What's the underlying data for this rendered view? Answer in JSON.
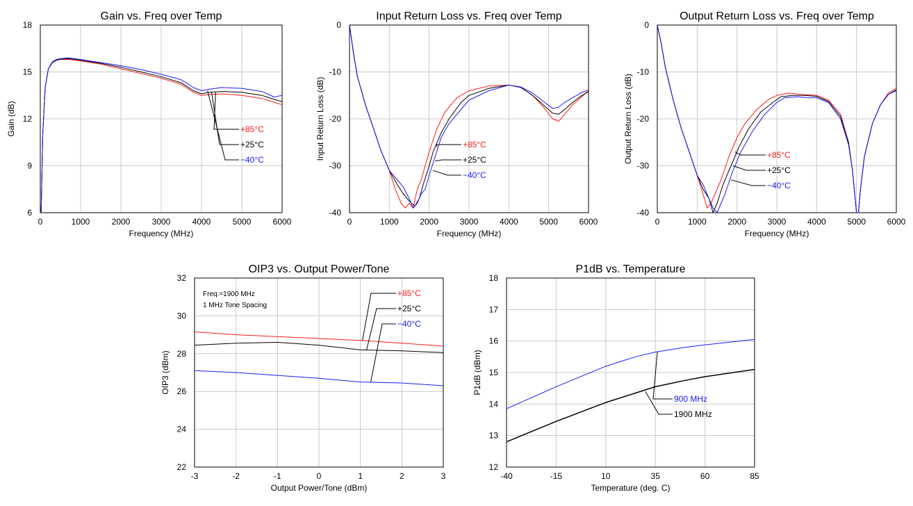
{
  "colors": {
    "red": "#ff1a1a",
    "black": "#000000",
    "blue": "#1a1aff",
    "grid": "#c8c8c8"
  },
  "chart_data": [
    {
      "id": "gain",
      "type": "line",
      "title": "Gain vs. Freq over Temp",
      "xlabel": "Frequency (MHz)",
      "ylabel": "Gain (dB)",
      "xlim": [
        0,
        6000
      ],
      "ylim": [
        6,
        18
      ],
      "xticks": [
        0,
        1000,
        2000,
        3000,
        4000,
        5000,
        6000
      ],
      "yticks": [
        6,
        9,
        12,
        15,
        18
      ],
      "grid": true,
      "legend": {
        "entries": [
          {
            "label": "+85°C",
            "color": "red",
            "anchor": [
              4350,
              13.7
            ]
          },
          {
            "label": "+25°C",
            "color": "black",
            "anchor": [
              4250,
              13.7
            ]
          },
          {
            "label": "−40°C",
            "color": "blue",
            "anchor": [
              4150,
              13.8
            ]
          }
        ]
      },
      "series": [
        {
          "name": "+85°C",
          "color": "red",
          "x": [
            20,
            60,
            120,
            200,
            300,
            400,
            500,
            700,
            1000,
            1500,
            2000,
            2500,
            3000,
            3500,
            3800,
            4000,
            4200,
            4500,
            5000,
            5500,
            6000
          ],
          "y": [
            6,
            11,
            14,
            15.2,
            15.6,
            15.75,
            15.8,
            15.8,
            15.7,
            15.5,
            15.2,
            14.9,
            14.6,
            14.2,
            13.7,
            13.5,
            13.55,
            13.6,
            13.5,
            13.3,
            12.9
          ]
        },
        {
          "name": "+25°C",
          "color": "black",
          "x": [
            20,
            60,
            120,
            200,
            300,
            400,
            500,
            700,
            1000,
            1500,
            2000,
            2500,
            3000,
            3500,
            3800,
            4000,
            4200,
            4500,
            5000,
            5500,
            6000
          ],
          "y": [
            6,
            11,
            14,
            15.2,
            15.6,
            15.75,
            15.82,
            15.85,
            15.75,
            15.55,
            15.3,
            15.0,
            14.7,
            14.3,
            13.8,
            13.6,
            13.7,
            13.75,
            13.7,
            13.5,
            13.1
          ]
        },
        {
          "name": "−40°C",
          "color": "blue",
          "x": [
            20,
            60,
            120,
            200,
            300,
            400,
            500,
            700,
            1000,
            1500,
            2000,
            2500,
            3000,
            3500,
            3800,
            4000,
            4200,
            4500,
            5000,
            5500,
            5800,
            6000
          ],
          "y": [
            6,
            11,
            14,
            15.2,
            15.65,
            15.8,
            15.85,
            15.9,
            15.8,
            15.6,
            15.4,
            15.15,
            14.85,
            14.5,
            14.0,
            13.8,
            13.9,
            14.0,
            13.95,
            13.75,
            13.4,
            13.5
          ]
        }
      ]
    },
    {
      "id": "irl",
      "type": "line",
      "title": "Input Return Loss vs. Freq over Temp",
      "xlabel": "Frequency (MHz)",
      "ylabel": "Input Return Loss (dB)",
      "xlim": [
        0,
        6000
      ],
      "ylim": [
        -40,
        0
      ],
      "xticks": [
        0,
        1000,
        2000,
        3000,
        4000,
        5000,
        6000
      ],
      "yticks": [
        -40,
        -30,
        -20,
        -10,
        0
      ],
      "grid": true,
      "legend": {
        "entries": [
          {
            "label": "+85°C",
            "color": "red",
            "anchor": [
              2200,
              -26
            ]
          },
          {
            "label": "+25°C",
            "color": "black",
            "anchor": [
              2150,
              -29
            ]
          },
          {
            "label": "−40°C",
            "color": "blue",
            "anchor": [
              2100,
              -31
            ]
          }
        ]
      },
      "series": [
        {
          "name": "+85°C",
          "color": "red",
          "x": [
            0,
            100,
            200,
            400,
            600,
            800,
            1000,
            1150,
            1300,
            1400,
            1500,
            1600,
            1700,
            1800,
            1900,
            2000,
            2200,
            2400,
            2700,
            3000,
            3500,
            4000,
            4300,
            4600,
            4900,
            5100,
            5250,
            5400,
            5600,
            5800,
            6000
          ],
          "y": [
            0,
            -6,
            -11,
            -17,
            -22,
            -27,
            -31,
            -35,
            -38,
            -39,
            -38,
            -39,
            -35,
            -33,
            -30,
            -27,
            -22,
            -18.5,
            -15.5,
            -14,
            -13,
            -12.8,
            -13.3,
            -15,
            -17.8,
            -20,
            -20.5,
            -19,
            -17,
            -15.5,
            -14
          ]
        },
        {
          "name": "+25°C",
          "color": "black",
          "x": [
            0,
            100,
            200,
            400,
            600,
            800,
            1000,
            1200,
            1350,
            1450,
            1550,
            1650,
            1750,
            1850,
            2000,
            2100,
            2300,
            2500,
            2800,
            3000,
            3500,
            4000,
            4300,
            4600,
            4900,
            5100,
            5250,
            5400,
            5600,
            5800,
            6000
          ],
          "y": [
            0,
            -6,
            -11,
            -17,
            -22,
            -27,
            -31,
            -34,
            -36,
            -37,
            -38,
            -38.5,
            -37,
            -34,
            -30,
            -27,
            -23,
            -20,
            -16.5,
            -15,
            -13.5,
            -12.8,
            -13.3,
            -15,
            -17.3,
            -18.8,
            -19,
            -18,
            -16.5,
            -15.2,
            -14.2
          ]
        },
        {
          "name": "−40°C",
          "color": "blue",
          "x": [
            0,
            100,
            200,
            400,
            600,
            800,
            1000,
            1200,
            1350,
            1500,
            1600,
            1700,
            1800,
            1900,
            2000,
            2150,
            2300,
            2500,
            2800,
            3000,
            3500,
            4000,
            4300,
            4600,
            4900,
            5100,
            5250,
            5400,
            5600,
            5800,
            6000
          ],
          "y": [
            0,
            -6,
            -11,
            -17,
            -22,
            -27,
            -31,
            -33,
            -34.5,
            -37,
            -39,
            -38,
            -36,
            -35,
            -32,
            -28,
            -24,
            -21,
            -18,
            -16,
            -14,
            -12.8,
            -13.2,
            -14.5,
            -16.5,
            -17.8,
            -17.5,
            -16.5,
            -15.5,
            -14.5,
            -13.8
          ]
        }
      ]
    },
    {
      "id": "orl",
      "type": "line",
      "title": "Output Return Loss vs. Freq over Temp",
      "xlabel": "Frequency (MHz)",
      "ylabel": "Output Return Loss (dB)",
      "xlim": [
        0,
        6000
      ],
      "ylim": [
        -40,
        0
      ],
      "xticks": [
        0,
        1000,
        2000,
        3000,
        4000,
        5000,
        6000
      ],
      "yticks": [
        -40,
        -30,
        -20,
        -10,
        0
      ],
      "grid": true,
      "legend": {
        "entries": [
          {
            "label": "+85°C",
            "color": "red",
            "anchor": [
              1950,
              -27
            ]
          },
          {
            "label": "+25°C",
            "color": "black",
            "anchor": [
              1900,
              -30
            ]
          },
          {
            "label": "−40°C",
            "color": "blue",
            "anchor": [
              1850,
              -33
            ]
          }
        ]
      },
      "series": [
        {
          "name": "+85°C",
          "color": "red",
          "x": [
            0,
            100,
            200,
            400,
            600,
            800,
            1000,
            1150,
            1250,
            1350,
            1450,
            1600,
            1800,
            2000,
            2200,
            2500,
            2800,
            3000,
            3300,
            3600,
            4000,
            4300,
            4600,
            4800,
            4900,
            5000,
            5050,
            5100,
            5200,
            5400,
            5600,
            5800,
            6000
          ],
          "y": [
            0,
            -4,
            -9,
            -16,
            -22,
            -27,
            -32,
            -36,
            -39,
            -38,
            -36,
            -33,
            -28,
            -24,
            -21,
            -18,
            -15.8,
            -15,
            -14.5,
            -14.8,
            -15,
            -16,
            -19,
            -25,
            -31,
            -40,
            -40,
            -35,
            -28,
            -21,
            -17,
            -14.5,
            -13.5
          ]
        },
        {
          "name": "+25°C",
          "color": "black",
          "x": [
            0,
            100,
            200,
            400,
            600,
            800,
            1000,
            1150,
            1300,
            1400,
            1500,
            1650,
            1850,
            2050,
            2300,
            2600,
            2900,
            3100,
            3400,
            3700,
            4000,
            4300,
            4600,
            4800,
            4900,
            5000,
            5050,
            5100,
            5200,
            5400,
            5600,
            5800,
            6000
          ],
          "y": [
            0,
            -4,
            -9,
            -16,
            -22,
            -27,
            -32,
            -35,
            -37,
            -40,
            -38,
            -34,
            -30,
            -26,
            -22,
            -18.5,
            -16.5,
            -15.3,
            -15,
            -15,
            -15.2,
            -16.3,
            -19.5,
            -25,
            -31,
            -40,
            -40,
            -35,
            -28,
            -21,
            -17,
            -14.8,
            -13.8
          ]
        },
        {
          "name": "−40°C",
          "color": "blue",
          "x": [
            0,
            100,
            200,
            400,
            600,
            800,
            1000,
            1150,
            1300,
            1400,
            1500,
            1700,
            1900,
            2100,
            2400,
            2700,
            3000,
            3200,
            3500,
            3800,
            4000,
            4300,
            4600,
            4800,
            4900,
            5000,
            5050,
            5100,
            5200,
            5400,
            5600,
            5800,
            6000
          ],
          "y": [
            0,
            -4,
            -9,
            -16,
            -22,
            -27,
            -32,
            -34,
            -37,
            -39,
            -40,
            -36,
            -31,
            -27,
            -22.5,
            -19,
            -16.5,
            -15.5,
            -15.3,
            -15.5,
            -15.5,
            -16.5,
            -20,
            -25.5,
            -31,
            -40,
            -40,
            -35,
            -28,
            -21,
            -17,
            -14.8,
            -14
          ]
        }
      ]
    },
    {
      "id": "oip3",
      "type": "line",
      "title": "OIP3 vs. Output Power/Tone",
      "xlabel": "Output Power/Tone (dBm)",
      "ylabel": "OIP3 (dBm)",
      "xlim": [
        -3,
        3
      ],
      "ylim": [
        22,
        32
      ],
      "xticks": [
        -3,
        -2,
        -1,
        0,
        1,
        2,
        3
      ],
      "yticks": [
        22,
        24,
        26,
        28,
        30,
        32
      ],
      "grid": true,
      "annotation": [
        "Freq.=1900 MHz",
        "1 MHz Tone Spacing"
      ],
      "legend": {
        "entries": [
          {
            "label": "+85°C",
            "color": "red",
            "anchor": [
              1.05,
              28.7
            ]
          },
          {
            "label": "+25°C",
            "color": "black",
            "anchor": [
              1.15,
              28.2
            ]
          },
          {
            "label": "−40°C",
            "color": "blue",
            "anchor": [
              1.25,
              26.5
            ]
          }
        ]
      },
      "series": [
        {
          "name": "+85°C",
          "color": "red",
          "x": [
            -3,
            -2,
            -1,
            0,
            1,
            2,
            3
          ],
          "y": [
            29.15,
            29.0,
            28.9,
            28.8,
            28.7,
            28.55,
            28.4
          ]
        },
        {
          "name": "+25°C",
          "color": "black",
          "x": [
            -3,
            -2,
            -1,
            0,
            1,
            2,
            3
          ],
          "y": [
            28.45,
            28.55,
            28.6,
            28.45,
            28.2,
            28.15,
            28.05
          ]
        },
        {
          "name": "−40°C",
          "color": "blue",
          "x": [
            -3,
            -2,
            -1,
            0,
            1,
            2,
            3
          ],
          "y": [
            27.1,
            27.0,
            26.85,
            26.7,
            26.5,
            26.45,
            26.3
          ]
        }
      ]
    },
    {
      "id": "p1db",
      "type": "line",
      "title": "P1dB vs. Temperature",
      "xlabel": "Temperature (deg. C)",
      "ylabel": "P1dB (dBm)",
      "xlim": [
        -40,
        85
      ],
      "ylim": [
        12,
        18
      ],
      "xticks": [
        -40,
        -15,
        10,
        35,
        60,
        85
      ],
      "yticks": [
        12,
        13,
        14,
        15,
        16,
        17,
        18
      ],
      "grid": true,
      "legend": {
        "entries": [
          {
            "label": "900 MHz",
            "color": "blue",
            "anchor": [
              36,
              15.65
            ]
          },
          {
            "label": "1900 MHz",
            "color": "black",
            "anchor": [
              30,
              14.4
            ]
          }
        ]
      },
      "series": [
        {
          "name": "900 MHz",
          "color": "blue",
          "x": [
            -40,
            -15,
            10,
            25,
            35,
            50,
            60,
            85
          ],
          "y": [
            13.85,
            14.55,
            15.2,
            15.5,
            15.65,
            15.8,
            15.88,
            16.05
          ]
        },
        {
          "name": "1900 MHz",
          "color": "black",
          "x": [
            -40,
            -15,
            10,
            25,
            35,
            50,
            60,
            85
          ],
          "y": [
            12.8,
            13.45,
            14.05,
            14.35,
            14.55,
            14.75,
            14.87,
            15.1
          ]
        }
      ]
    }
  ]
}
